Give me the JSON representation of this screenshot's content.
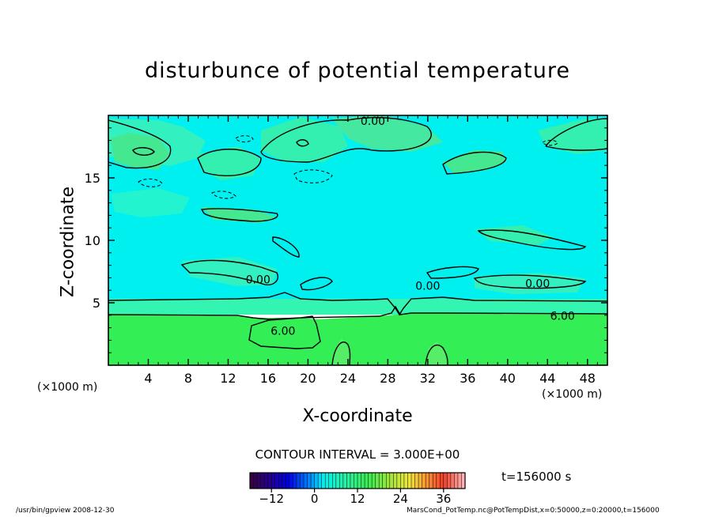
{
  "chart_data": {
    "type": "heatmap",
    "title": "disturbunce of potential temperature",
    "xlabel": "X-coordinate",
    "ylabel": "Z-coordinate",
    "x_unit_label": "(×1000 m)",
    "xlim": [
      0,
      50
    ],
    "ylim": [
      0,
      20
    ],
    "x_ticks": [
      4,
      8,
      12,
      16,
      20,
      24,
      28,
      32,
      36,
      40,
      44,
      48
    ],
    "y_ticks": [
      5,
      10,
      15
    ],
    "contour_labels": [
      {
        "text": "0.00",
        "x": 26.5,
        "z": 19.5
      },
      {
        "text": "0.00",
        "x": 15,
        "z": 6.8
      },
      {
        "text": "0.00",
        "x": 32,
        "z": 6.3
      },
      {
        "text": "0.00",
        "x": 43,
        "z": 6.5
      },
      {
        "text": "6.00",
        "x": 45.5,
        "z": 3.9
      },
      {
        "text": "6.00",
        "x": 17.5,
        "z": 2.7
      }
    ],
    "contour_interval": "CONTOUR INTERVAL = 3.000E+00",
    "colorbar": {
      "ticks": [
        -12,
        0,
        12,
        24,
        36
      ],
      "range": [
        -18,
        42
      ]
    },
    "bands": [
      {
        "z_from": 0,
        "z_to": 4,
        "value": 9
      },
      {
        "z_from": 4,
        "z_to": 5,
        "value": 6
      },
      {
        "z_from": 5,
        "z_to": 20,
        "value": 0
      }
    ],
    "time_label": "t=156000 s"
  },
  "footer": {
    "left": "/usr/bin/gpview   2008-12-30",
    "right": "MarsCond_PotTemp.nc@PotTempDist,x=0:50000,z=0:20000,t=156000"
  },
  "colors": {
    "cyan": "#00f0f0",
    "light_cyan": "#33ffee",
    "teal_green": "#44e899",
    "green": "#33ee55",
    "mid_green": "#55ee66"
  }
}
